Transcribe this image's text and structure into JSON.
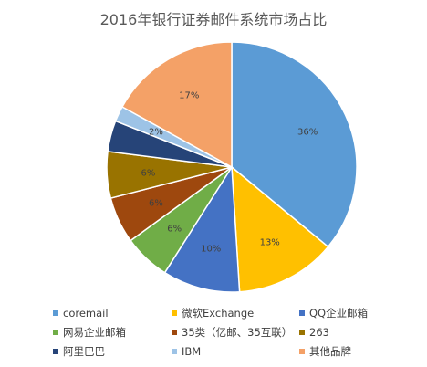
{
  "chart_data": {
    "type": "pie",
    "title": "2016年银行证券邮件系统市场占比",
    "legend_position": "bottom",
    "slices": [
      {
        "name": "coremail",
        "value": 36,
        "label": "36%",
        "color": "#5B9BD5"
      },
      {
        "name": "微软Exchange",
        "value": 13,
        "label": "13%",
        "color": "#FFC000"
      },
      {
        "name": "QQ企业邮箱",
        "value": 10,
        "label": "10%",
        "color": "#4472C4"
      },
      {
        "name": "网易企业邮箱",
        "value": 6,
        "label": "6%",
        "color": "#70AD47"
      },
      {
        "name": "35类（亿邮、35互联）",
        "value": 6,
        "label": "6%",
        "color": "#9E480E"
      },
      {
        "name": "263",
        "value": 6,
        "label": "6%",
        "color": "#997300"
      },
      {
        "name": "阿里巴巴",
        "value": 4,
        "label": "",
        "color": "#264478"
      },
      {
        "name": "IBM",
        "value": 2,
        "label": "2%",
        "color": "#9DC3E6"
      },
      {
        "name": "其他品牌",
        "value": 17,
        "label": "17%",
        "color": "#F4A167"
      }
    ]
  }
}
